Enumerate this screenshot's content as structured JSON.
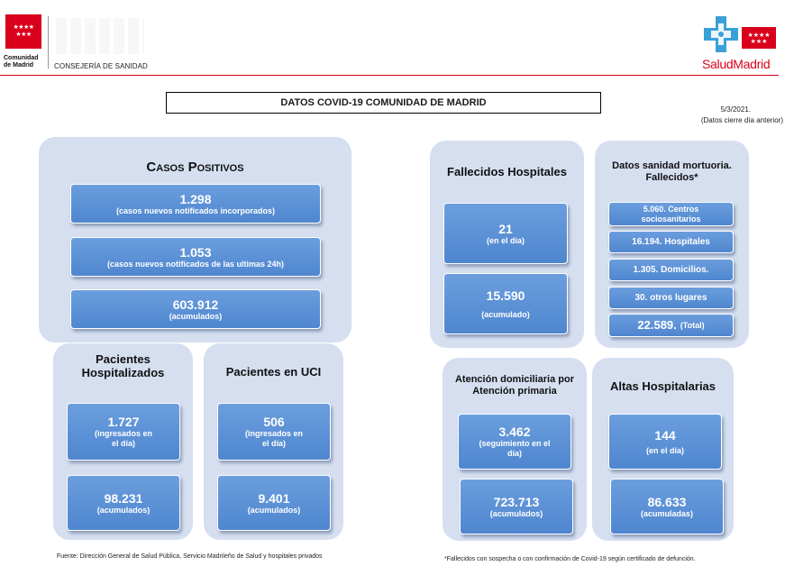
{
  "header": {
    "org_name_line1": "Comunidad",
    "org_name_line2": "de Madrid",
    "department": "CONSEJERÍA DE SANIDAD",
    "brand": "SaludMadrid",
    "brand_color": "#d9001b"
  },
  "title": "DATOS COVID-19 COMUNIDAD DE MADRID",
  "date": "5/3/2021.",
  "date_note": "(Datos cierre día anterior)",
  "casos_positivos": {
    "title": "Casos Positivos",
    "items": [
      {
        "value": "1.298",
        "label": "(casos nuevos notificados incorporados)"
      },
      {
        "value": "1.053",
        "label": "(casos nuevos notificados de las ultimas 24h)"
      },
      {
        "value": "603.912",
        "label": "(acumulados)"
      }
    ]
  },
  "hospitalizados": {
    "title_line1": "Pacientes",
    "title_line2": "Hospitalizados",
    "today_value": "1.727",
    "today_label_line1": "(ingresados en",
    "today_label_line2": "el día)",
    "total_value": "98.231",
    "total_label": "(acumulados)"
  },
  "uci": {
    "title": "Pacientes en UCI",
    "today_value": "506",
    "today_label_line1": "(ingresados en",
    "today_label_line2": "el día)",
    "total_value": "9.401",
    "total_label": "(acumulados)"
  },
  "fallecidos_hospitales": {
    "title": "Fallecidos Hospitales",
    "today_value": "21",
    "today_label": "(en el día)",
    "total_value": "15.590",
    "total_label": "(acumulado)"
  },
  "mortuoria": {
    "title_line1": "Datos sanidad mortuoria.",
    "title_line2": "Fallecidos*",
    "items": [
      {
        "line1": "5.060. Centros",
        "line2": "sociosanitarios"
      },
      {
        "line1": "16.194. Hospitales"
      },
      {
        "line1": "1.305. Domicilios."
      },
      {
        "line1": "30. otros lugares"
      }
    ],
    "total_value": "22.589.",
    "total_label": "(Total)"
  },
  "atencion_domiciliaria": {
    "title_line1": "Atención domiciliaria por",
    "title_line2": "Atención primaria",
    "current_value": "3.462",
    "current_label_line1": "(seguimiento en el",
    "current_label_line2": "día)",
    "total_value": "723.713",
    "total_label": "(acumulados)"
  },
  "altas": {
    "title": "Altas Hospitalarias",
    "today_value": "144",
    "today_label": "(en el día)",
    "total_value": "86.633",
    "total_label": "(acumuladas)"
  },
  "footer": {
    "source": "Fuente: Dirección General de Salud Pública, Servicio Madrileño de Salud y hospitales privados",
    "note": "*Fallecidos con sospecha o con confirmación de Covid-19 según certificado de defunción."
  }
}
